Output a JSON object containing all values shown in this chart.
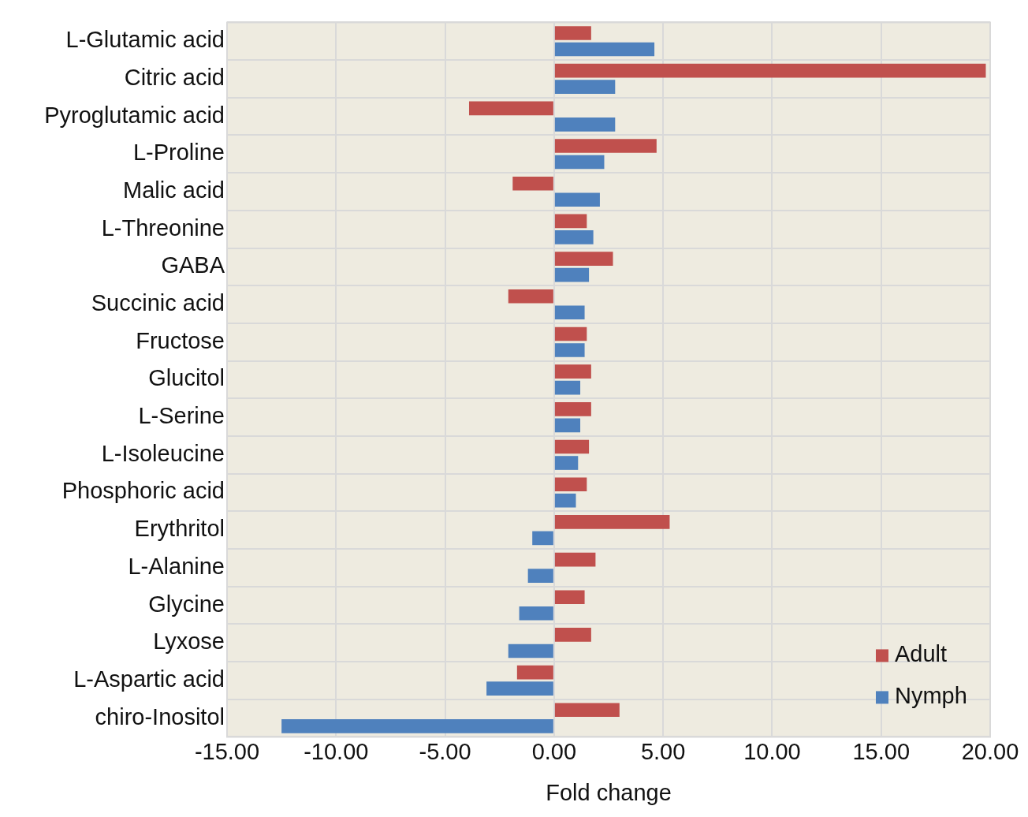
{
  "chart_data": {
    "type": "bar",
    "orientation": "horizontal",
    "xlabel": "Fold change",
    "categories": [
      "L-Glutamic acid",
      "Citric acid",
      "Pyroglutamic acid",
      "L-Proline",
      "Malic acid",
      "L-Threonine",
      "GABA",
      "Succinic acid",
      "Fructose",
      "Glucitol",
      "L-Serine",
      "L-Isoleucine",
      "Phosphoric acid",
      "Erythritol",
      "L-Alanine",
      "Glycine",
      "Lyxose",
      "L-Aspartic acid",
      "chiro-Inositol"
    ],
    "series": [
      {
        "name": "Adult",
        "color": "#c0504d",
        "values": [
          1.7,
          19.8,
          -3.9,
          4.7,
          -1.9,
          1.5,
          2.7,
          -2.1,
          1.5,
          1.7,
          1.7,
          1.6,
          1.5,
          5.3,
          1.9,
          1.4,
          1.7,
          -1.7,
          3.0
        ]
      },
      {
        "name": "Nymph",
        "color": "#4f81bd",
        "values": [
          4.6,
          2.8,
          2.8,
          2.3,
          2.1,
          1.8,
          1.6,
          1.4,
          1.4,
          1.2,
          1.2,
          1.1,
          1.0,
          -1.0,
          -1.2,
          -1.6,
          -2.1,
          -3.1,
          -12.5
        ]
      }
    ],
    "xlim": [
      -15,
      20
    ],
    "xticks": [
      {
        "value": -15,
        "label": "-15.00"
      },
      {
        "value": -10,
        "label": "-10.00"
      },
      {
        "value": -5,
        "label": "-5.00"
      },
      {
        "value": 0,
        "label": "0.00"
      },
      {
        "value": 5,
        "label": "5.00"
      },
      {
        "value": 10,
        "label": "10.00"
      },
      {
        "value": 15,
        "label": "15.00"
      },
      {
        "value": 20,
        "label": "20.00"
      }
    ],
    "grid": true,
    "legend": "bottom right"
  }
}
